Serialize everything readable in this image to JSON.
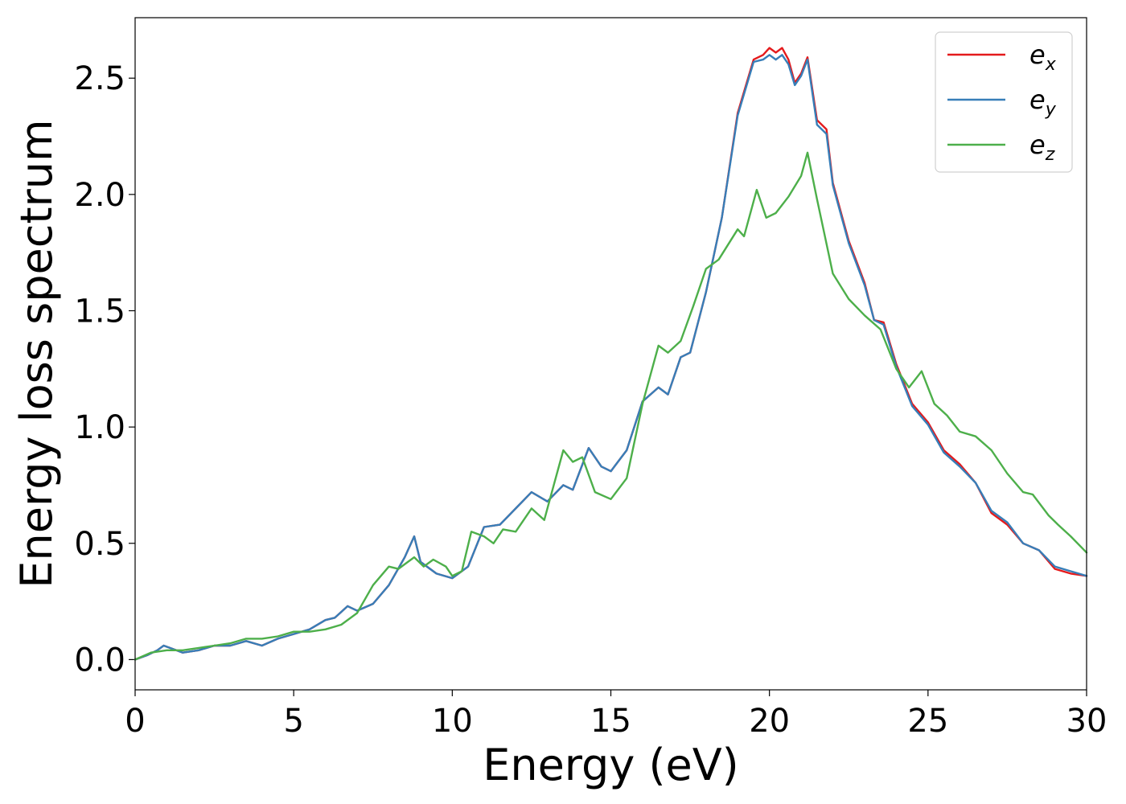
{
  "chart_data": {
    "type": "line",
    "title": "",
    "xlabel": "Energy (eV)",
    "ylabel": "Energy loss spectrum",
    "xlim": [
      0,
      30
    ],
    "ylim": [
      -0.13,
      2.76
    ],
    "xticks": [
      "0",
      "5",
      "10",
      "15",
      "20",
      "25",
      "30"
    ],
    "yticks": [
      "0.0",
      "0.5",
      "1.0",
      "1.5",
      "2.0",
      "2.5"
    ],
    "grid": false,
    "legend_position": "top-right",
    "series": [
      {
        "name": "e_x",
        "label_main": "e",
        "label_sub": "x",
        "color": "#e41a1c",
        "x": [
          0,
          0.4,
          0.7,
          0.9,
          1.1,
          1.5,
          2.0,
          2.5,
          3.0,
          3.5,
          4.0,
          4.5,
          5.0,
          5.5,
          6.0,
          6.3,
          6.7,
          7.0,
          7.5,
          8.0,
          8.5,
          8.8,
          9.0,
          9.5,
          10.0,
          10.5,
          11.0,
          11.5,
          12.0,
          12.5,
          13.0,
          13.5,
          13.8,
          14.3,
          14.7,
          15.0,
          15.5,
          16.0,
          16.5,
          16.8,
          17.2,
          17.5,
          18.0,
          18.5,
          19.0,
          19.5,
          19.8,
          20.0,
          20.2,
          20.4,
          20.6,
          20.8,
          21.0,
          21.2,
          21.5,
          21.8,
          22.0,
          22.5,
          23.0,
          23.3,
          23.6,
          24.0,
          24.5,
          25.0,
          25.5,
          26.0,
          26.5,
          27.0,
          27.5,
          28.0,
          28.5,
          29.0,
          29.5,
          30.0
        ],
        "y": [
          0,
          0.02,
          0.04,
          0.06,
          0.05,
          0.03,
          0.04,
          0.06,
          0.06,
          0.08,
          0.06,
          0.09,
          0.11,
          0.13,
          0.17,
          0.18,
          0.23,
          0.21,
          0.24,
          0.32,
          0.44,
          0.53,
          0.42,
          0.37,
          0.35,
          0.4,
          0.57,
          0.58,
          0.65,
          0.72,
          0.68,
          0.75,
          0.73,
          0.91,
          0.83,
          0.81,
          0.9,
          1.11,
          1.17,
          1.14,
          1.3,
          1.32,
          1.58,
          1.9,
          2.35,
          2.58,
          2.6,
          2.63,
          2.61,
          2.63,
          2.58,
          2.48,
          2.52,
          2.59,
          2.32,
          2.28,
          2.05,
          1.8,
          1.62,
          1.46,
          1.45,
          1.27,
          1.1,
          1.02,
          0.9,
          0.84,
          0.76,
          0.63,
          0.58,
          0.5,
          0.47,
          0.39,
          0.37,
          0.36
        ]
      },
      {
        "name": "e_y",
        "label_main": "e",
        "label_sub": "y",
        "color": "#377eb8",
        "x": [
          0,
          0.4,
          0.7,
          0.9,
          1.1,
          1.5,
          2.0,
          2.5,
          3.0,
          3.5,
          4.0,
          4.5,
          5.0,
          5.5,
          6.0,
          6.3,
          6.7,
          7.0,
          7.5,
          8.0,
          8.5,
          8.8,
          9.0,
          9.5,
          10.0,
          10.5,
          11.0,
          11.5,
          12.0,
          12.5,
          13.0,
          13.5,
          13.8,
          14.3,
          14.7,
          15.0,
          15.5,
          16.0,
          16.5,
          16.8,
          17.2,
          17.5,
          18.0,
          18.5,
          19.0,
          19.5,
          19.8,
          20.0,
          20.2,
          20.4,
          20.6,
          20.8,
          21.0,
          21.2,
          21.5,
          21.8,
          22.0,
          22.5,
          23.0,
          23.3,
          23.6,
          24.0,
          24.5,
          25.0,
          25.5,
          26.0,
          26.5,
          27.0,
          27.5,
          28.0,
          28.5,
          29.0,
          29.5,
          30.0
        ],
        "y": [
          0,
          0.02,
          0.04,
          0.06,
          0.05,
          0.03,
          0.04,
          0.06,
          0.06,
          0.08,
          0.06,
          0.09,
          0.11,
          0.13,
          0.17,
          0.18,
          0.23,
          0.21,
          0.24,
          0.32,
          0.44,
          0.53,
          0.42,
          0.37,
          0.35,
          0.4,
          0.57,
          0.58,
          0.65,
          0.72,
          0.68,
          0.75,
          0.73,
          0.91,
          0.83,
          0.81,
          0.9,
          1.11,
          1.17,
          1.14,
          1.3,
          1.32,
          1.58,
          1.9,
          2.34,
          2.57,
          2.58,
          2.6,
          2.58,
          2.6,
          2.56,
          2.47,
          2.51,
          2.58,
          2.3,
          2.26,
          2.04,
          1.79,
          1.61,
          1.46,
          1.44,
          1.26,
          1.09,
          1.01,
          0.89,
          0.83,
          0.76,
          0.64,
          0.59,
          0.5,
          0.47,
          0.4,
          0.38,
          0.36
        ]
      },
      {
        "name": "e_z",
        "label_main": "e",
        "label_sub": "z",
        "color": "#4daf4a",
        "x": [
          0,
          0.5,
          1.0,
          1.5,
          2.0,
          2.5,
          3.0,
          3.5,
          4.0,
          4.5,
          5.0,
          5.5,
          6.0,
          6.5,
          7.0,
          7.5,
          8.0,
          8.3,
          8.8,
          9.1,
          9.4,
          9.8,
          10.0,
          10.3,
          10.6,
          11.0,
          11.3,
          11.6,
          12.0,
          12.5,
          12.9,
          13.2,
          13.5,
          13.8,
          14.1,
          14.5,
          15.0,
          15.5,
          16.0,
          16.5,
          16.8,
          17.2,
          17.6,
          18.0,
          18.4,
          19.0,
          19.2,
          19.6,
          19.9,
          20.2,
          20.6,
          21.0,
          21.2,
          21.5,
          22.0,
          22.5,
          23.0,
          23.5,
          24.0,
          24.4,
          24.8,
          25.2,
          25.6,
          26.0,
          26.5,
          27.0,
          27.5,
          28.0,
          28.3,
          28.8,
          29.1,
          29.5,
          30.0
        ],
        "y": [
          0,
          0.03,
          0.04,
          0.04,
          0.05,
          0.06,
          0.07,
          0.09,
          0.09,
          0.1,
          0.12,
          0.12,
          0.13,
          0.15,
          0.2,
          0.32,
          0.4,
          0.39,
          0.44,
          0.4,
          0.43,
          0.4,
          0.36,
          0.38,
          0.55,
          0.53,
          0.5,
          0.56,
          0.55,
          0.65,
          0.6,
          0.75,
          0.9,
          0.85,
          0.87,
          0.72,
          0.69,
          0.78,
          1.1,
          1.35,
          1.32,
          1.37,
          1.52,
          1.68,
          1.72,
          1.85,
          1.82,
          2.02,
          1.9,
          1.92,
          1.99,
          2.08,
          2.18,
          1.98,
          1.66,
          1.55,
          1.48,
          1.42,
          1.25,
          1.17,
          1.24,
          1.1,
          1.05,
          0.98,
          0.96,
          0.9,
          0.8,
          0.72,
          0.71,
          0.62,
          0.58,
          0.53,
          0.46
        ]
      }
    ]
  }
}
